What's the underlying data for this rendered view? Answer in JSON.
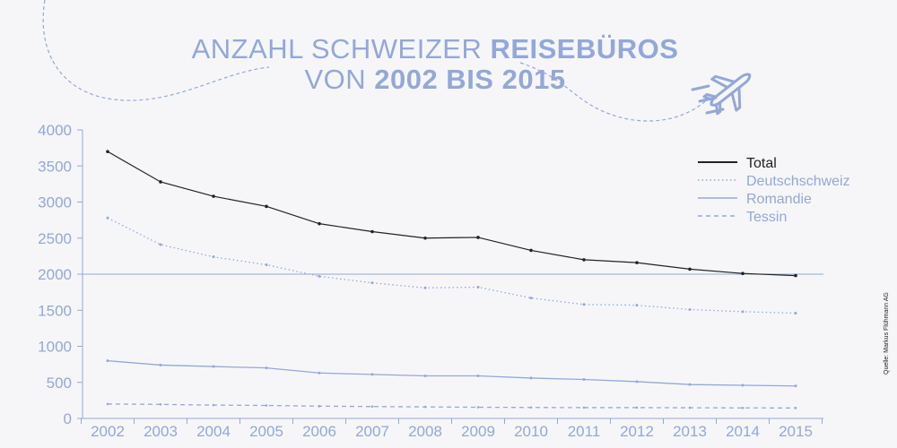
{
  "title": {
    "line1_regular": "ANZAHL SCHWEIZER ",
    "line1_bold": "REISEBÜROS",
    "line2_regular": "VON ",
    "line2_bold": "2002 BIS 2015"
  },
  "source": "Quelle: Markus Flühmann AG",
  "colors": {
    "total": "#222222",
    "accent": "#93a8d8",
    "background": "#f6f6f9"
  },
  "icon": "airplane-icon",
  "chart_data": {
    "type": "line",
    "x": [
      "2002",
      "2003",
      "2004",
      "2005",
      "2006",
      "2007",
      "2008",
      "2009",
      "2010",
      "2011",
      "2012",
      "2013",
      "2014",
      "2015"
    ],
    "ylim": [
      0,
      4000
    ],
    "yticks": [
      0,
      500,
      1000,
      1500,
      2000,
      2500,
      3000,
      3500,
      4000
    ],
    "legend_position": "top-right",
    "series": [
      {
        "name": "Total",
        "values": [
          3700,
          3280,
          3080,
          2940,
          2700,
          2590,
          2500,
          2510,
          2330,
          2200,
          2160,
          2070,
          2010,
          1980
        ]
      },
      {
        "name": "Deutschschweiz",
        "values": [
          2780,
          2410,
          2240,
          2130,
          1970,
          1880,
          1810,
          1820,
          1670,
          1580,
          1570,
          1510,
          1480,
          1460
        ]
      },
      {
        "name": "Romandie",
        "values": [
          800,
          740,
          720,
          700,
          630,
          610,
          590,
          590,
          560,
          540,
          510,
          470,
          460,
          450
        ]
      },
      {
        "name": "Tessin",
        "values": [
          200,
          195,
          185,
          180,
          170,
          165,
          160,
          155,
          152,
          150,
          150,
          148,
          146,
          145
        ]
      }
    ]
  }
}
